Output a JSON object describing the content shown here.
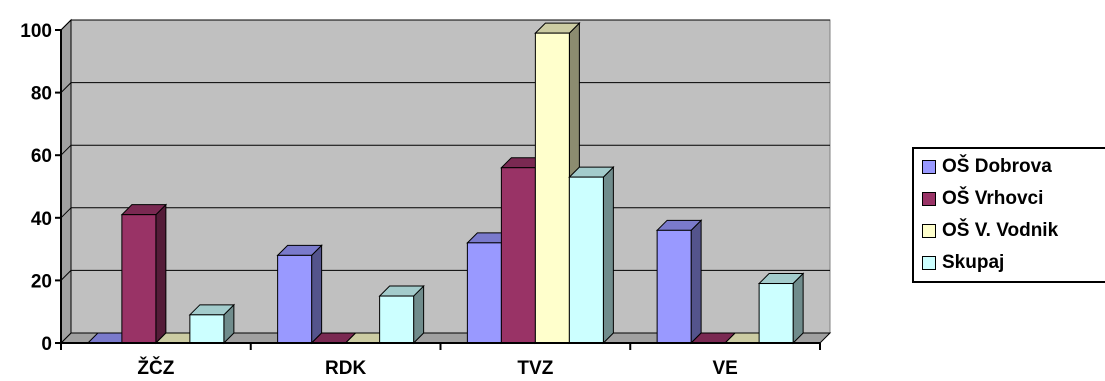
{
  "chart_data": {
    "type": "bar",
    "categories": [
      "ŽČZ",
      "RDK",
      "TVZ",
      "VE"
    ],
    "series": [
      {
        "name": "OŠ Dobrova",
        "values": [
          0,
          28,
          32,
          36
        ],
        "color": "#9999ff"
      },
      {
        "name": "OŠ Vrhovci",
        "values": [
          41,
          0,
          56,
          0
        ],
        "color": "#993366"
      },
      {
        "name": "OŠ V. Vodnik",
        "values": [
          0,
          0,
          99,
          0
        ],
        "color": "#ffffcc"
      },
      {
        "name": "Skupaj",
        "values": [
          9,
          15,
          53,
          19
        ],
        "color": "#ccffff"
      }
    ],
    "ylim": [
      0,
      100
    ],
    "yticks": [
      "0",
      "20",
      "40",
      "60",
      "80",
      "100"
    ],
    "grid": true,
    "legend_position": "right",
    "plot_background": "#c0c0c0"
  }
}
